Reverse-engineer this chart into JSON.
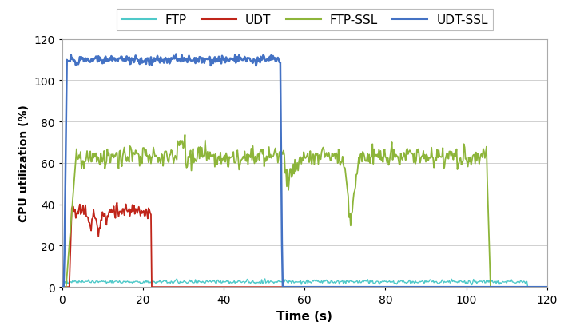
{
  "title": "",
  "xlabel": "Time (s)",
  "ylabel": "CPU utilization (%)",
  "xlim": [
    0,
    120
  ],
  "ylim": [
    0,
    120
  ],
  "xticks": [
    0,
    20,
    40,
    60,
    80,
    100,
    120
  ],
  "yticks": [
    0,
    20,
    40,
    60,
    80,
    100,
    120
  ],
  "legend": [
    "FTP",
    "UDT",
    "FTP-SSL",
    "UDT-SSL"
  ],
  "colors": {
    "FTP": "#4ec9c9",
    "UDT": "#c0251a",
    "FTP-SSL": "#8db53a",
    "UDT-SSL": "#4472c4"
  },
  "linewidths": {
    "FTP": 1.0,
    "UDT": 1.3,
    "FTP-SSL": 1.3,
    "UDT-SSL": 1.8
  },
  "background_color": "#ffffff",
  "grid_color": "#d0d0d0"
}
